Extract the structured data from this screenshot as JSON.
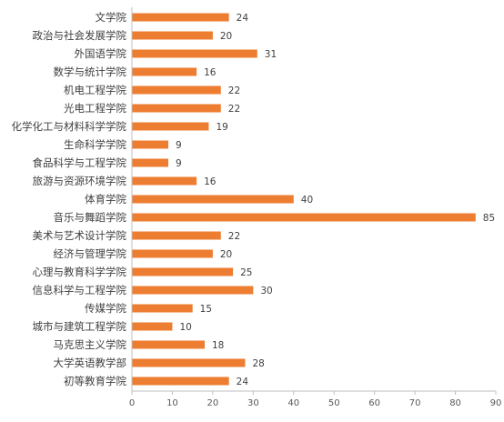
{
  "chart_data": {
    "type": "bar",
    "orientation": "horizontal",
    "categories": [
      "文学院",
      "政治与社会发展学院",
      "外国语学院",
      "数学与统计学院",
      "机电工程学院",
      "光电工程学院",
      "化学化工与材料科学学院",
      "生命科学学院",
      "食品科学与工程学院",
      "旅游与资源环境学院",
      "体育学院",
      "音乐与舞蹈学院",
      "美术与艺术设计学院",
      "经济与管理学院",
      "心理与教育科学学院",
      "信息科学与工程学院",
      "传媒学院",
      "城市与建筑工程学院",
      "马克思主义学院",
      "大学英语教学部",
      "初等教育学院"
    ],
    "values": [
      24,
      20,
      31,
      16,
      22,
      22,
      19,
      9,
      9,
      16,
      40,
      85,
      22,
      20,
      25,
      30,
      15,
      10,
      18,
      28,
      24
    ],
    "xlim": [
      0,
      90
    ],
    "xticks": [
      "0",
      "10",
      "20",
      "30",
      "40",
      "50",
      "60",
      "70",
      "80",
      "90"
    ],
    "data_labels": true,
    "grid": false,
    "legend": "none",
    "bar_color": "#ED7D31",
    "axis_color": "#BFBFBF"
  }
}
